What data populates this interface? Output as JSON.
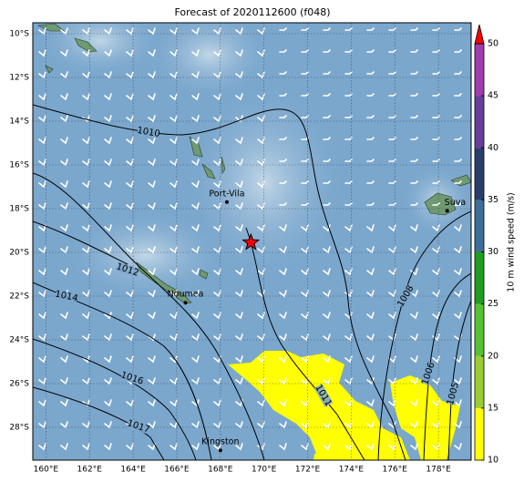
{
  "chart_data": {
    "type": "map",
    "title": "Forecast of 2020112600 (f048)",
    "xlim": [
      159.4,
      179.5
    ],
    "ylim": [
      -29.5,
      -9.5
    ],
    "xticks": [
      {
        "value": 160,
        "label": "160°E"
      },
      {
        "value": 162,
        "label": "162°E"
      },
      {
        "value": 164,
        "label": "164°E"
      },
      {
        "value": 166,
        "label": "166°E"
      },
      {
        "value": 168,
        "label": "168°E"
      },
      {
        "value": 170,
        "label": "170°E"
      },
      {
        "value": 172,
        "label": "172°E"
      },
      {
        "value": 174,
        "label": "174°E"
      },
      {
        "value": 176,
        "label": "176°E"
      },
      {
        "value": 178,
        "label": "178°E"
      }
    ],
    "yticks": [
      {
        "value": -10,
        "label": "10°S"
      },
      {
        "value": -12,
        "label": "12°S"
      },
      {
        "value": -14,
        "label": "14°S"
      },
      {
        "value": -16,
        "label": "16°S"
      },
      {
        "value": -18,
        "label": "18°S"
      },
      {
        "value": -20,
        "label": "20°S"
      },
      {
        "value": -22,
        "label": "22°S"
      },
      {
        "value": -24,
        "label": "24°S"
      },
      {
        "value": -26,
        "label": "26°S"
      },
      {
        "value": -28,
        "label": "28°S"
      }
    ],
    "grid": true,
    "places": [
      {
        "name": "Port-Vila",
        "lon": 168.3,
        "lat": -17.7
      },
      {
        "name": "Suva",
        "lon": 178.4,
        "lat": -18.1
      },
      {
        "name": "Noumea",
        "lon": 166.4,
        "lat": -22.3
      },
      {
        "name": "Kingston",
        "lon": 168.0,
        "lat": -29.05
      }
    ],
    "storm": {
      "lon": 169.4,
      "lat": -19.55,
      "color": "#ff0000"
    },
    "isobar_labels": [
      1010,
      1012,
      1014,
      1016,
      1017,
      1011,
      1008,
      1006,
      1005
    ],
    "colorbar": {
      "label": "10 m wind speed (m/s)",
      "clim": [
        10,
        50
      ],
      "ticks": [
        10,
        15,
        20,
        25,
        30,
        35,
        40,
        45,
        50
      ],
      "colors": [
        "#ffff00",
        "#9acd32",
        "#55c232",
        "#1e9e1e",
        "#3d6e99",
        "#2a3e6c",
        "#6a3d9a",
        "#a23ab0"
      ],
      "extend_color": "#ff0000"
    }
  }
}
